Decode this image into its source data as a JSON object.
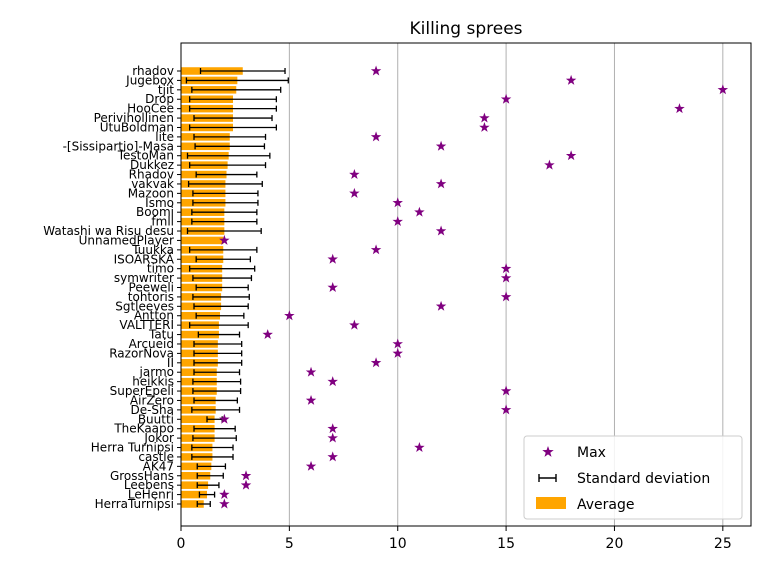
{
  "chart_data": {
    "type": "bar",
    "orientation": "horizontal",
    "title": "Killing sprees",
    "xlabel": "",
    "ylabel": "",
    "xlim": [
      0,
      26.3
    ],
    "x_ticks": [
      0,
      5,
      10,
      15,
      20,
      25
    ],
    "grid": "vertical",
    "legend_position": "lower right",
    "legend": [
      "Max",
      "Standard deviation",
      "Average"
    ],
    "colors": {
      "average": "#ffa500",
      "max": "#800080",
      "errorbar": "#000000",
      "grid": "#b0b0b0"
    },
    "categories": [
      "rhadov",
      "Jugebox",
      "tjit",
      "Drop",
      "HooCee",
      "Perivihollinen",
      "UtuBoldman",
      "lite",
      "-[Sissipartio]-Masa",
      "TestoMan",
      "Dukkez",
      "Rhadov",
      "vakvak",
      "Mazoon",
      "Ismo",
      "Boomi",
      "fmll",
      "Watashi wa Risu desu",
      "UnnamedPlayer",
      "Tuukka",
      "ISOÄRSKÄ",
      "timo",
      "symwriter",
      "Peeweli",
      "tohtoris",
      "Sgtleeves",
      "Antton",
      "VALTTERI",
      "Tatu",
      "Arcueid",
      "RazorNova",
      "II",
      "jarmo",
      "heikkis",
      "SuperEpeli",
      "AirZero",
      "De-Sha",
      "Buutti",
      "TheKaapo",
      "Jokor",
      "Herra Turnipsi",
      "castle",
      "AK47",
      "GrossHans",
      "Leebens",
      "LeHenri",
      "HerraTurnipsi"
    ],
    "series": [
      {
        "name": "Average",
        "values": [
          2.85,
          2.6,
          2.55,
          2.4,
          2.4,
          2.4,
          2.4,
          2.25,
          2.25,
          2.2,
          2.15,
          2.1,
          2.05,
          2.05,
          2.05,
          2.0,
          2.0,
          2.0,
          1.95,
          1.95,
          1.95,
          1.9,
          1.9,
          1.9,
          1.85,
          1.85,
          1.8,
          1.75,
          1.75,
          1.7,
          1.7,
          1.7,
          1.65,
          1.65,
          1.65,
          1.6,
          1.6,
          1.55,
          1.55,
          1.55,
          1.45,
          1.45,
          1.4,
          1.35,
          1.25,
          1.2,
          1.05
        ]
      },
      {
        "name": "Standard deviation",
        "values": [
          1.95,
          2.35,
          2.05,
          2.0,
          2.0,
          1.8,
          2.0,
          1.65,
          1.6,
          1.9,
          1.75,
          1.4,
          1.7,
          1.5,
          1.5,
          1.5,
          1.5,
          1.7,
          0.0,
          1.55,
          1.25,
          1.5,
          1.35,
          1.2,
          1.3,
          1.25,
          1.1,
          1.35,
          0.95,
          1.1,
          1.1,
          1.1,
          1.05,
          1.1,
          1.1,
          1.0,
          1.1,
          0.35,
          0.95,
          1.0,
          0.95,
          0.95,
          0.65,
          0.6,
          0.5,
          0.35,
          0.3
        ]
      },
      {
        "name": "Max",
        "values": [
          9,
          18,
          25,
          15,
          23,
          14,
          14,
          9,
          12,
          18,
          17,
          8,
          12,
          8,
          10,
          11,
          10,
          12,
          2,
          9,
          7,
          15,
          15,
          7,
          15,
          12,
          5,
          8,
          4,
          10,
          10,
          9,
          6,
          7,
          15,
          6,
          15,
          2,
          7,
          7,
          11,
          7,
          6,
          3,
          3,
          2,
          2
        ]
      }
    ]
  }
}
